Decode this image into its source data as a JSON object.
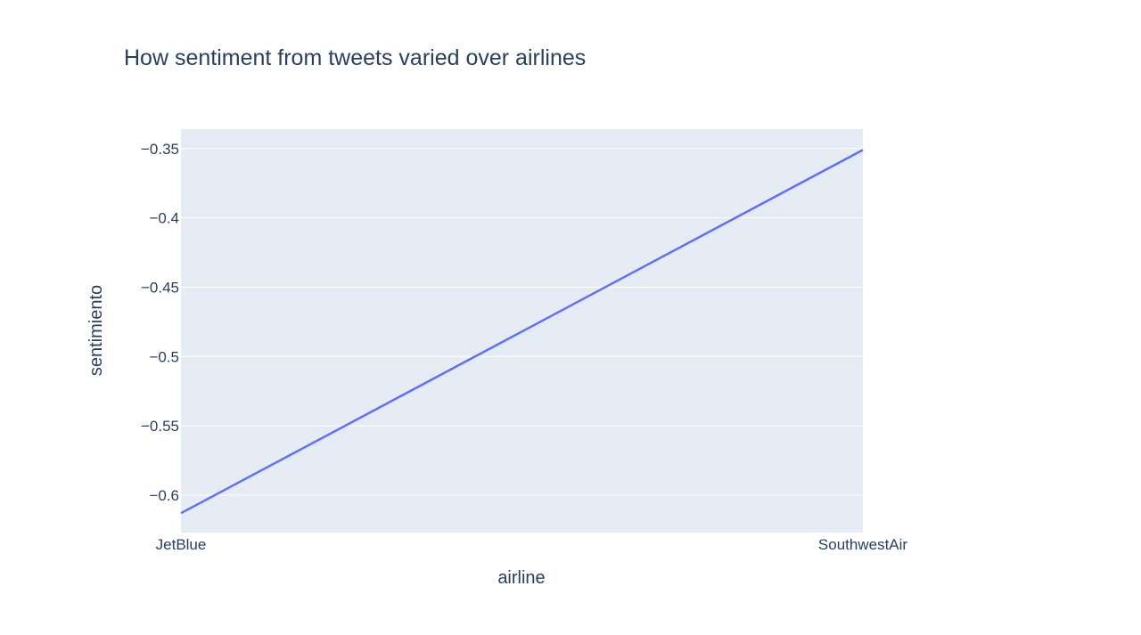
{
  "chart_data": {
    "type": "line",
    "title": "How sentiment from tweets varied over airlines",
    "xlabel": "airline",
    "ylabel": "sentimiento",
    "categories": [
      "JetBlue",
      "SouthwestAir"
    ],
    "series": [
      {
        "values": [
          -0.613,
          -0.351
        ],
        "color": "#636efa"
      }
    ],
    "ylim": [
      -0.627,
      -0.336
    ],
    "yticks": [
      -0.35,
      -0.4,
      -0.45,
      -0.5,
      -0.55,
      -0.6
    ],
    "ytick_labels": [
      "−0.35",
      "−0.4",
      "−0.45",
      "−0.5",
      "−0.55",
      "−0.6"
    ],
    "grid": true,
    "plot_bgcolor": "#e5ecf6",
    "gridcolor": "#ffffff",
    "text_color": "#2a3f5f"
  }
}
